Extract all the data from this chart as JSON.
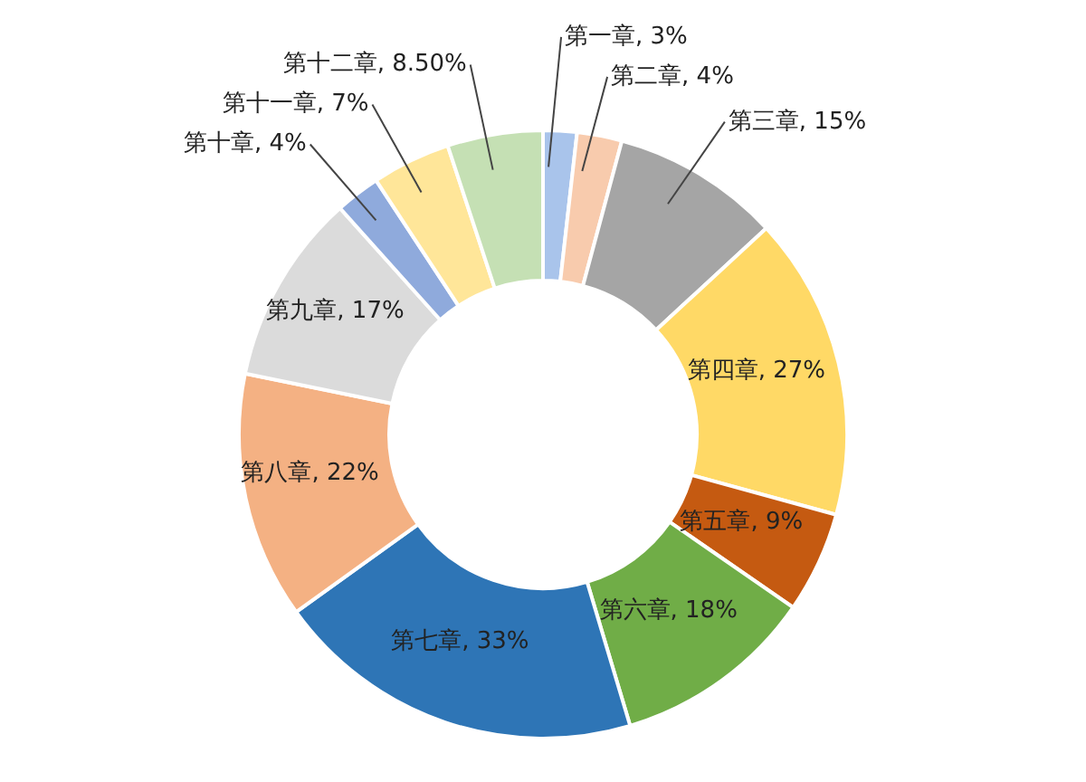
{
  "chart_data": {
    "type": "donut",
    "categories": [
      "第一章",
      "第二章",
      "第三章",
      "第四章",
      "第五章",
      "第六章",
      "第七章",
      "第八章",
      "第九章",
      "第十章",
      "第十一章",
      "第十二章"
    ],
    "values": [
      3,
      4,
      15,
      27,
      9,
      18,
      33,
      22,
      17,
      4,
      7,
      8.5
    ],
    "value_labels": [
      "3%",
      "4%",
      "15%",
      "27%",
      "9%",
      "18%",
      "33%",
      "22%",
      "17%",
      "4%",
      "7%",
      "8.50%"
    ],
    "colors": [
      "#a9c4eb",
      "#f8cbad",
      "#a5a5a5",
      "#ffd966",
      "#c55a11",
      "#70ad47",
      "#2e75b6",
      "#f4b183",
      "#dbdbdb",
      "#8faadc",
      "#ffe699",
      "#c5e0b4"
    ],
    "legend": false
  }
}
